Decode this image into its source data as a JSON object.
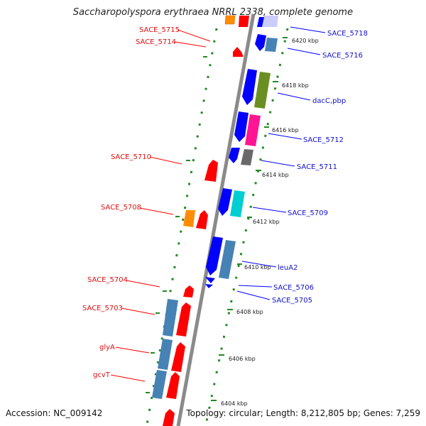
{
  "title": "Saccharopolyspora erythraea NRRL 2338, complete genome",
  "accession": "Accession: NC_009142",
  "topology": "Topology: circular; Length: 8,212,805 bp; Genes: 7,259",
  "kbp_labels": [
    "6420 kbp",
    "6418 kbp",
    "6416 kbp",
    "6414 kbp",
    "6412 kbp",
    "6410 kbp",
    "6408 kbp",
    "6406 kbp",
    "6404 kbp"
  ],
  "left_labels": [
    "SACE_5715",
    "SACE_5714",
    "SACE_5710",
    "SACE_5708",
    "SACE_5704",
    "SACE_5703",
    "glyA",
    "gcvT"
  ],
  "right_labels": [
    "SACE_5718",
    "SACE_5716",
    "dacC,pbp",
    "SACE_5712",
    "SACE_5711",
    "SACE_5709",
    "leuA2",
    "SACE_5706",
    "SACE_5705"
  ],
  "colors": {
    "reverse_strand": "#ff0000",
    "forward_strand": "#0000ff",
    "steel_blue": "#4682b4",
    "olive": "#6b8e23",
    "magenta": "#ff1493",
    "gray": "#696969",
    "cyan": "#00ced1",
    "orange": "#ff8c00",
    "lavender": "#ccccff",
    "tick_green": "#228b22",
    "backbone": "#888888"
  }
}
